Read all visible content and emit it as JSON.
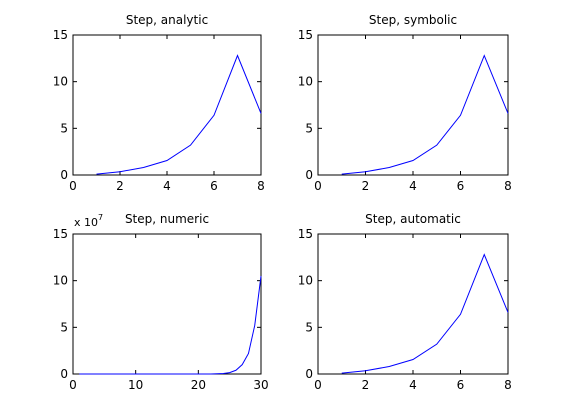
{
  "chart_data": [
    {
      "type": "line",
      "title": "Step, analytic",
      "xlim": [
        0,
        8
      ],
      "ylim": [
        0,
        15
      ],
      "xticks": [
        0,
        2,
        4,
        6,
        8
      ],
      "yticks": [
        0,
        5,
        10,
        15
      ],
      "grid": false,
      "series": [
        {
          "x": [
            1,
            2,
            3,
            4,
            5,
            6,
            7,
            8
          ],
          "y": [
            0.1,
            0.35,
            0.8,
            1.55,
            3.2,
            6.4,
            12.8,
            6.6
          ],
          "color": "#0000ff"
        }
      ]
    },
    {
      "type": "line",
      "title": "Step, symbolic",
      "xlim": [
        0,
        8
      ],
      "ylim": [
        0,
        15
      ],
      "xticks": [
        0,
        2,
        4,
        6,
        8
      ],
      "yticks": [
        0,
        5,
        10,
        15
      ],
      "grid": false,
      "series": [
        {
          "x": [
            1,
            2,
            3,
            4,
            5,
            6,
            7,
            8
          ],
          "y": [
            0.1,
            0.35,
            0.8,
            1.55,
            3.2,
            6.4,
            12.8,
            6.6
          ],
          "color": "#0000ff"
        }
      ]
    },
    {
      "type": "line",
      "title": "Step, numeric",
      "exponent_base": "x 10",
      "exponent_power": "7",
      "xlim": [
        0,
        30
      ],
      "ylim": [
        0,
        15
      ],
      "xticks": [
        0,
        10,
        20,
        30
      ],
      "yticks": [
        0,
        5,
        10,
        15
      ],
      "grid": false,
      "series": [
        {
          "x": [
            1,
            2,
            3,
            4,
            5,
            6,
            7,
            8,
            9,
            10,
            11,
            12,
            13,
            14,
            15,
            16,
            17,
            18,
            19,
            20,
            21,
            22,
            23,
            24,
            25,
            26,
            27,
            28,
            29,
            30
          ],
          "y": [
            0,
            0,
            0,
            0,
            0,
            0,
            0,
            0,
            0,
            0,
            0,
            0,
            0,
            0,
            0,
            0,
            0,
            0,
            0,
            0,
            0,
            0,
            0.02,
            0.05,
            0.15,
            0.4,
            1.0,
            2.2,
            5.2,
            10.5
          ],
          "color": "#0000ff"
        }
      ]
    },
    {
      "type": "line",
      "title": "Step, automatic",
      "xlim": [
        0,
        8
      ],
      "ylim": [
        0,
        15
      ],
      "xticks": [
        0,
        2,
        4,
        6,
        8
      ],
      "yticks": [
        0,
        5,
        10,
        15
      ],
      "grid": false,
      "series": [
        {
          "x": [
            1,
            2,
            3,
            4,
            5,
            6,
            7,
            8
          ],
          "y": [
            0.1,
            0.35,
            0.8,
            1.55,
            3.2,
            6.4,
            12.8,
            6.6
          ],
          "color": "#0000ff"
        }
      ]
    }
  ]
}
